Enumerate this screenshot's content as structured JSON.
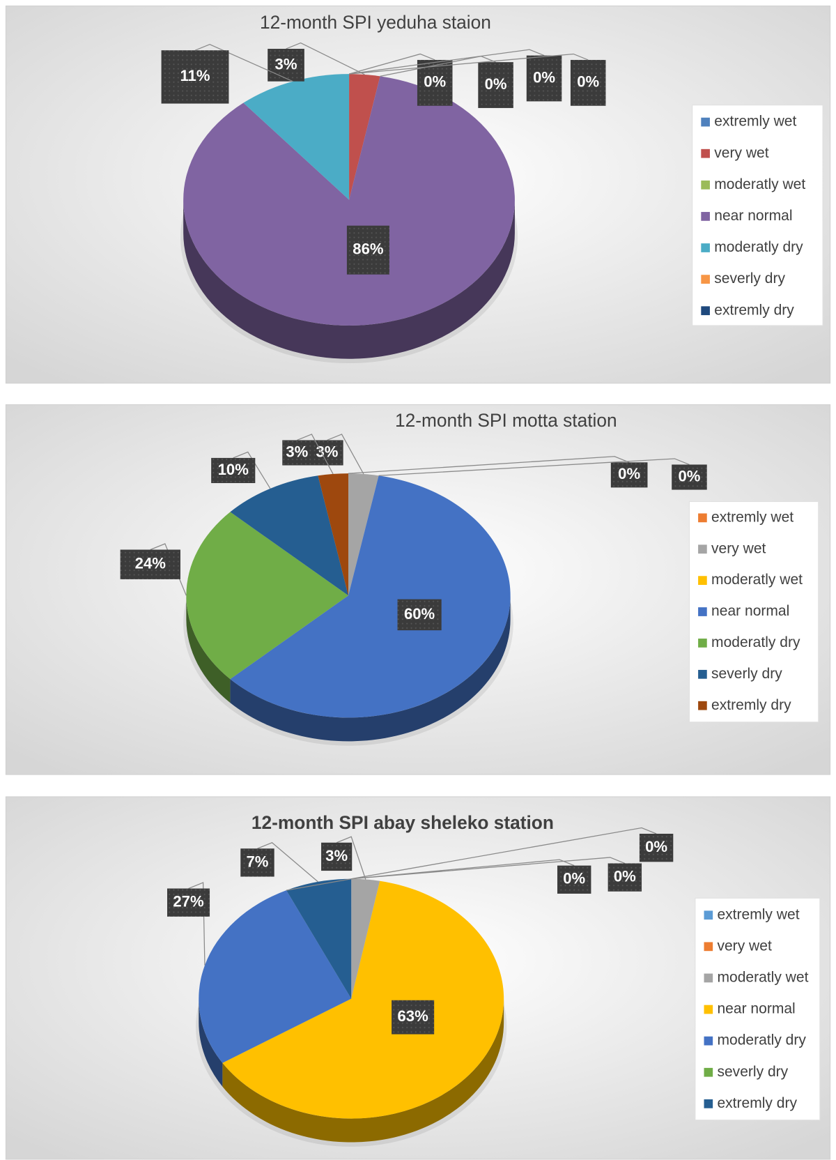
{
  "chart_data": [
    {
      "type": "pie",
      "title": "12-month SPI yeduha staion",
      "categories": [
        "extremly wet",
        "very wet",
        "moderatly wet",
        "near normal",
        "moderatly dry",
        "severly dry",
        "extremly dry"
      ],
      "values": [
        0,
        3,
        0,
        86,
        11,
        0,
        0
      ],
      "value_labels": [
        "0%",
        "3%",
        "0%",
        "86%",
        "11%",
        "0%",
        "0%"
      ],
      "colors": [
        "#4f81bd",
        "#c0504d",
        "#9bbb59",
        "#8064a2",
        "#4bacc6",
        "#f79646",
        "#1f497d"
      ]
    },
    {
      "type": "pie",
      "title": "12-month SPI motta station",
      "categories": [
        "extremly wet",
        "very wet",
        "moderatly wet",
        "near normal",
        "moderatly dry",
        "severly dry",
        "extremly dry"
      ],
      "values": [
        0,
        3,
        0,
        60,
        24,
        10,
        3
      ],
      "value_labels": [
        "0%",
        "3%",
        "0%",
        "60%",
        "24%",
        "10%",
        "3%"
      ],
      "colors": [
        "#ed7d31",
        "#a5a5a5",
        "#ffc000",
        "#4472c4",
        "#70ad47",
        "#255e91",
        "#9e480e"
      ]
    },
    {
      "type": "pie",
      "title": "12-month SPI abay sheleko station",
      "categories": [
        "extremly wet",
        "very wet",
        "moderatly wet",
        "near normal",
        "moderatly dry",
        "severly dry",
        "extremly dry"
      ],
      "values": [
        0,
        0,
        3,
        63,
        27,
        0,
        7
      ],
      "value_labels": [
        "0%",
        "0%",
        "3%",
        "63%",
        "27%",
        "0%",
        "7%"
      ],
      "colors": [
        "#5b9bd5",
        "#ed7d31",
        "#a5a5a5",
        "#ffc000",
        "#4472c4",
        "#70ad47",
        "#255e91"
      ]
    }
  ]
}
